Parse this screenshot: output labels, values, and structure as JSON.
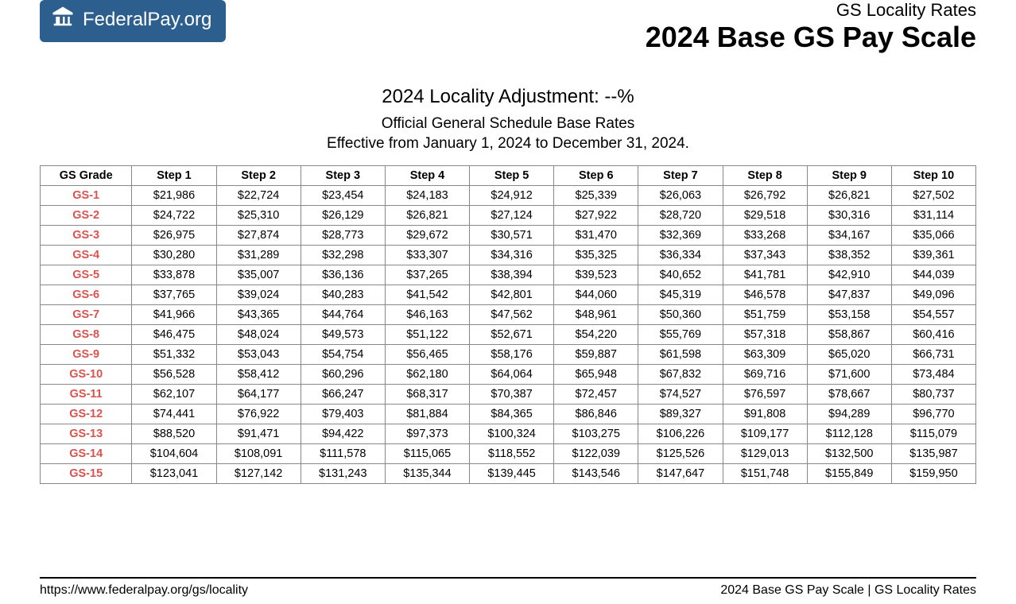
{
  "header": {
    "logo_text": "FederalPay.org",
    "subtitle": "GS Locality Rates",
    "title": "2024 Base GS Pay Scale"
  },
  "center": {
    "adjustment": "2024 Locality Adjustment: --%",
    "desc1": "Official General Schedule Base Rates",
    "desc2": "Effective from January 1, 2024 to December 31, 2024."
  },
  "table": {
    "columns": [
      "GS Grade",
      "Step 1",
      "Step 2",
      "Step 3",
      "Step 4",
      "Step 5",
      "Step 6",
      "Step 7",
      "Step 8",
      "Step 9",
      "Step 10"
    ],
    "rows": [
      [
        "GS-1",
        "$21,986",
        "$22,724",
        "$23,454",
        "$24,183",
        "$24,912",
        "$25,339",
        "$26,063",
        "$26,792",
        "$26,821",
        "$27,502"
      ],
      [
        "GS-2",
        "$24,722",
        "$25,310",
        "$26,129",
        "$26,821",
        "$27,124",
        "$27,922",
        "$28,720",
        "$29,518",
        "$30,316",
        "$31,114"
      ],
      [
        "GS-3",
        "$26,975",
        "$27,874",
        "$28,773",
        "$29,672",
        "$30,571",
        "$31,470",
        "$32,369",
        "$33,268",
        "$34,167",
        "$35,066"
      ],
      [
        "GS-4",
        "$30,280",
        "$31,289",
        "$32,298",
        "$33,307",
        "$34,316",
        "$35,325",
        "$36,334",
        "$37,343",
        "$38,352",
        "$39,361"
      ],
      [
        "GS-5",
        "$33,878",
        "$35,007",
        "$36,136",
        "$37,265",
        "$38,394",
        "$39,523",
        "$40,652",
        "$41,781",
        "$42,910",
        "$44,039"
      ],
      [
        "GS-6",
        "$37,765",
        "$39,024",
        "$40,283",
        "$41,542",
        "$42,801",
        "$44,060",
        "$45,319",
        "$46,578",
        "$47,837",
        "$49,096"
      ],
      [
        "GS-7",
        "$41,966",
        "$43,365",
        "$44,764",
        "$46,163",
        "$47,562",
        "$48,961",
        "$50,360",
        "$51,759",
        "$53,158",
        "$54,557"
      ],
      [
        "GS-8",
        "$46,475",
        "$48,024",
        "$49,573",
        "$51,122",
        "$52,671",
        "$54,220",
        "$55,769",
        "$57,318",
        "$58,867",
        "$60,416"
      ],
      [
        "GS-9",
        "$51,332",
        "$53,043",
        "$54,754",
        "$56,465",
        "$58,176",
        "$59,887",
        "$61,598",
        "$63,309",
        "$65,020",
        "$66,731"
      ],
      [
        "GS-10",
        "$56,528",
        "$58,412",
        "$60,296",
        "$62,180",
        "$64,064",
        "$65,948",
        "$67,832",
        "$69,716",
        "$71,600",
        "$73,484"
      ],
      [
        "GS-11",
        "$62,107",
        "$64,177",
        "$66,247",
        "$68,317",
        "$70,387",
        "$72,457",
        "$74,527",
        "$76,597",
        "$78,667",
        "$80,737"
      ],
      [
        "GS-12",
        "$74,441",
        "$76,922",
        "$79,403",
        "$81,884",
        "$84,365",
        "$86,846",
        "$89,327",
        "$91,808",
        "$94,289",
        "$96,770"
      ],
      [
        "GS-13",
        "$88,520",
        "$91,471",
        "$94,422",
        "$97,373",
        "$100,324",
        "$103,275",
        "$106,226",
        "$109,177",
        "$112,128",
        "$115,079"
      ],
      [
        "GS-14",
        "$104,604",
        "$108,091",
        "$111,578",
        "$115,065",
        "$118,552",
        "$122,039",
        "$125,526",
        "$129,013",
        "$132,500",
        "$135,987"
      ],
      [
        "GS-15",
        "$123,041",
        "$127,142",
        "$131,243",
        "$135,344",
        "$139,445",
        "$143,546",
        "$147,647",
        "$151,748",
        "$155,849",
        "$159,950"
      ]
    ],
    "grade_color": "#d9534f",
    "border_color": "#888888",
    "header_weight": "bold"
  },
  "footer": {
    "left": "https://www.federalpay.org/gs/locality",
    "right": "2024 Base GS Pay Scale | GS Locality Rates"
  },
  "colors": {
    "badge_bg": "#2c5f8d",
    "text": "#000000",
    "background": "#ffffff"
  }
}
